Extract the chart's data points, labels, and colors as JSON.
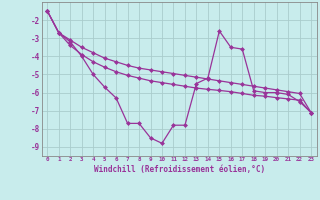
{
  "xlabel": "Windchill (Refroidissement éolien,°C)",
  "x_hours": [
    0,
    1,
    2,
    3,
    4,
    5,
    6,
    7,
    8,
    9,
    10,
    11,
    12,
    13,
    14,
    15,
    16,
    17,
    18,
    19,
    20,
    21,
    22,
    23
  ],
  "y_jagged": [
    -1.5,
    -2.7,
    -3.2,
    -4.0,
    -5.0,
    -5.7,
    -6.3,
    -7.7,
    -7.7,
    -8.5,
    -8.8,
    -7.8,
    -7.8,
    -5.5,
    -5.2,
    -2.6,
    -3.5,
    -3.6,
    -5.9,
    -6.0,
    -6.0,
    -6.1,
    -6.5,
    -7.1
  ],
  "y_line2": [
    -1.5,
    -2.7,
    -3.1,
    -3.5,
    -3.8,
    -4.1,
    -4.3,
    -4.5,
    -4.65,
    -4.75,
    -4.85,
    -4.95,
    -5.05,
    -5.15,
    -5.25,
    -5.35,
    -5.45,
    -5.55,
    -5.65,
    -5.75,
    -5.85,
    -5.95,
    -6.05,
    -7.1
  ],
  "y_line3": [
    -1.5,
    -2.7,
    -3.4,
    -3.9,
    -4.3,
    -4.6,
    -4.85,
    -5.05,
    -5.2,
    -5.35,
    -5.45,
    -5.55,
    -5.65,
    -5.75,
    -5.82,
    -5.88,
    -5.95,
    -6.05,
    -6.15,
    -6.2,
    -6.28,
    -6.35,
    -6.42,
    -7.1
  ],
  "ylim": [
    -9.5,
    -1.0
  ],
  "yticks": [
    -9,
    -8,
    -7,
    -6,
    -5,
    -4,
    -3,
    -2
  ],
  "bg_color": "#c8ecec",
  "line_color": "#993399",
  "grid_color": "#aacccc",
  "spine_color": "#888888",
  "marker": "D",
  "markersize": 2.5,
  "linewidth": 0.9
}
